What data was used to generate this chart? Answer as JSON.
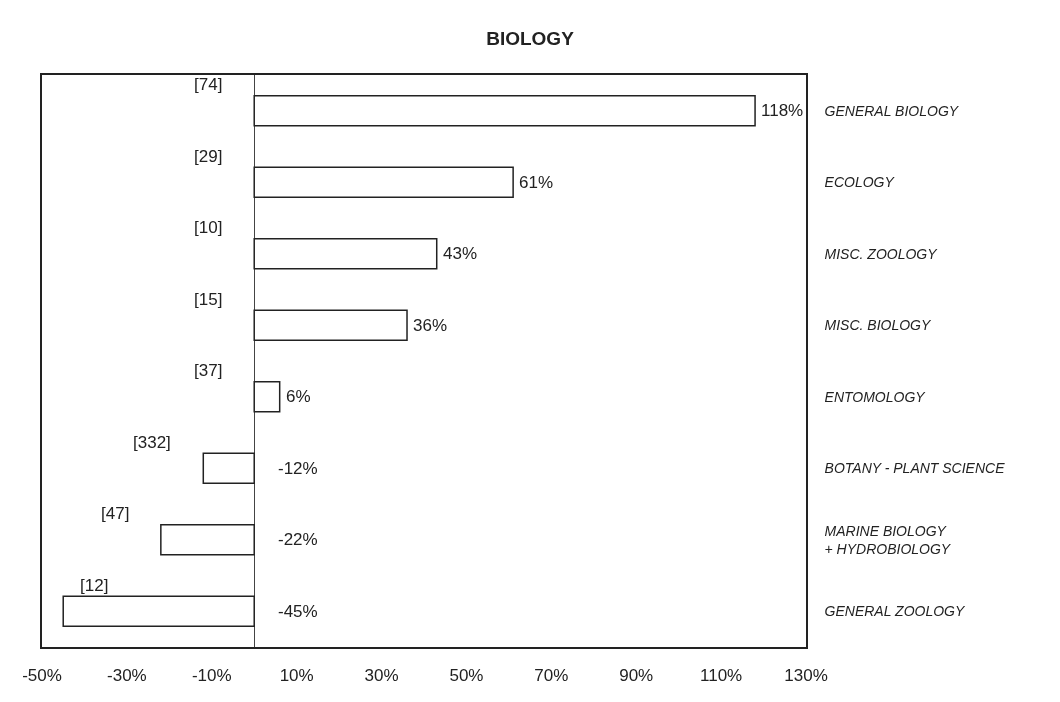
{
  "chart_data": {
    "type": "bar",
    "orientation": "horizontal",
    "title": "BIOLOGY",
    "categories": [
      "GENERAL BIOLOGY",
      "ECOLOGY",
      "MISC. ZOOLOGY",
      "MISC. BIOLOGY",
      "ENTOMOLOGY",
      "BOTANY - PLANT SCIENCE",
      "MARINE BIOLOGY + HYDROBIOLOGY",
      "GENERAL ZOOLOGY"
    ],
    "values": [
      118,
      61,
      43,
      36,
      6,
      -12,
      -22,
      -45
    ],
    "value_labels": [
      "118%",
      "61%",
      "43%",
      "36%",
      "6%",
      "-12%",
      "-22%",
      "-45%"
    ],
    "color": "#ffffff",
    "xlim": [
      -50,
      130
    ],
    "xticks": [
      {
        "value": -50,
        "label": "-50%"
      },
      {
        "value": -30,
        "label": "-30%"
      },
      {
        "value": -10,
        "label": "-10%"
      },
      {
        "value": 10,
        "label": "10%"
      },
      {
        "value": 30,
        "label": "30%"
      },
      {
        "value": 50,
        "label": "50%"
      },
      {
        "value": 70,
        "label": "70%"
      },
      {
        "value": 90,
        "label": "90%"
      },
      {
        "value": 110,
        "label": "110%"
      },
      {
        "value": 130,
        "label": "130%"
      }
    ],
    "grid": false,
    "annotations": [
      "[74]",
      "[29]",
      "[10]",
      "[15]",
      "[37]",
      "[332]",
      "[47]",
      "[12]"
    ]
  }
}
